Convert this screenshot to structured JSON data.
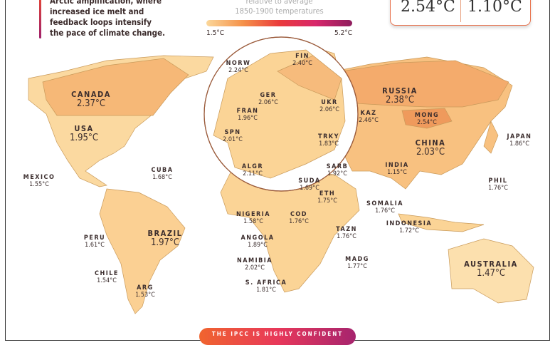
{
  "intro": {
    "lines": [
      "Arctic amplification, where",
      "increased ice melt and",
      "feedback loops intensify",
      "the pace of climate change."
    ]
  },
  "legend": {
    "line1": "relative to average",
    "line2": "1850-1900 temperatures",
    "min": "1.5°C",
    "max": "5.2°C",
    "gradient": [
      "#fbd79a",
      "#f5924a",
      "#ea3b3b",
      "#d8276b",
      "#8e1e5e"
    ]
  },
  "stats": {
    "left": "2.54°C",
    "right": "1.10°C"
  },
  "banner": "THE IPCC IS HIGHLY CONFIDENT",
  "countries": [
    {
      "name": "CANADA",
      "value": "2.37°C"
    },
    {
      "name": "USA",
      "value": "1.95°C"
    },
    {
      "name": "MEXICO",
      "value": "1.55°C"
    },
    {
      "name": "CUBA",
      "value": "1.68°C"
    },
    {
      "name": "PERU",
      "value": "1.61°C"
    },
    {
      "name": "BRAZIL",
      "value": "1.97°C"
    },
    {
      "name": "CHILE",
      "value": "1.54°C"
    },
    {
      "name": "ARG",
      "value": "1.53°C"
    },
    {
      "name": "NORW",
      "value": "2.24°C"
    },
    {
      "name": "FIN",
      "value": "2.40°C"
    },
    {
      "name": "GER",
      "value": "2.06°C"
    },
    {
      "name": "FRAN",
      "value": "1.96°C"
    },
    {
      "name": "UKR",
      "value": "2.06°C"
    },
    {
      "name": "SPN",
      "value": "2.01°C"
    },
    {
      "name": "TRKY",
      "value": "1.83°C"
    },
    {
      "name": "ALGR",
      "value": "2.11°C"
    },
    {
      "name": "SARB",
      "value": "1.92°C"
    },
    {
      "name": "SUDA",
      "value": "1.69°C"
    },
    {
      "name": "ETH",
      "value": "1.75°C"
    },
    {
      "name": "SOMALIA",
      "value": "1.76°C"
    },
    {
      "name": "NIGERIA",
      "value": "1.58°C"
    },
    {
      "name": "COD",
      "value": "1.76°C"
    },
    {
      "name": "TAZN",
      "value": "1.76°C"
    },
    {
      "name": "ANGOLA",
      "value": "1.89°C"
    },
    {
      "name": "NAMIBIA",
      "value": "2.02°C"
    },
    {
      "name": "MADG",
      "value": "1.77°C"
    },
    {
      "name": "S. AFRICA",
      "value": "1.81°C"
    },
    {
      "name": "RUSSIA",
      "value": "2.38°C"
    },
    {
      "name": "KAZ",
      "value": "2.46°C"
    },
    {
      "name": "MONG",
      "value": "2.54°C"
    },
    {
      "name": "CHINA",
      "value": "2.03°C"
    },
    {
      "name": "INDIA",
      "value": "1.15°C"
    },
    {
      "name": "JAPAN",
      "value": "1.86°C"
    },
    {
      "name": "PHIL",
      "value": "1.76°C"
    },
    {
      "name": "INDONESIA",
      "value": "1.72°C"
    },
    {
      "name": "AUSTRALIA",
      "value": "1.47°C"
    }
  ]
}
